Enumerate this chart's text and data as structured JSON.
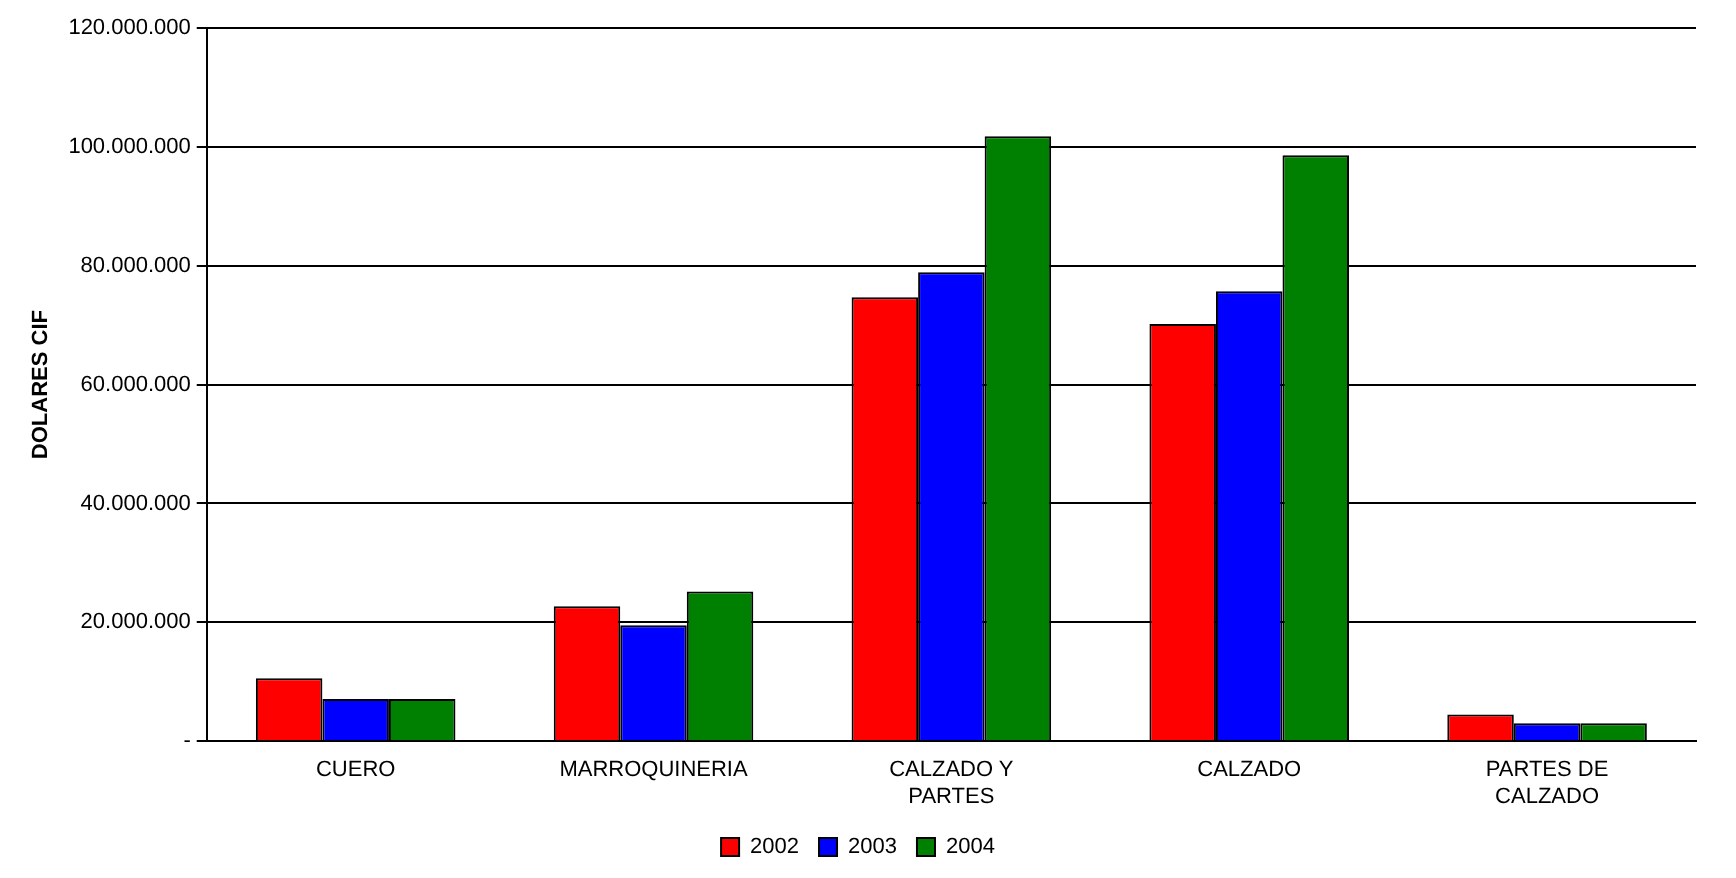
{
  "chart_data": {
    "type": "bar",
    "ylabel": "DOLARES CIF",
    "categories": [
      "CUERO",
      "MARROQUINERIA",
      "CALZADO Y PARTES",
      "CALZADO",
      "PARTES DE CALZADO"
    ],
    "series": [
      {
        "name": "2002",
        "color": "#ff0000",
        "values": [
          10600000,
          22700000,
          74700000,
          70200000,
          4500000
        ]
      },
      {
        "name": "2003",
        "color": "#0000ff",
        "values": [
          7100000,
          19500000,
          78900000,
          75700000,
          3000000
        ]
      },
      {
        "name": "2004",
        "color": "#008000",
        "values": [
          7100000,
          25200000,
          101800000,
          98600000,
          3000000
        ]
      }
    ],
    "ylim": [
      0,
      120000000
    ],
    "yticks": [
      {
        "value": 0,
        "label": "-"
      },
      {
        "value": 20000000,
        "label": "20.000.000"
      },
      {
        "value": 40000000,
        "label": "40.000.000"
      },
      {
        "value": 60000000,
        "label": "60.000.000"
      },
      {
        "value": 80000000,
        "label": "80.000.000"
      },
      {
        "value": 100000000,
        "label": "100.000.000"
      },
      {
        "value": 120000000,
        "label": "120.000.000"
      }
    ],
    "grid": "y",
    "legend": "bottom"
  }
}
